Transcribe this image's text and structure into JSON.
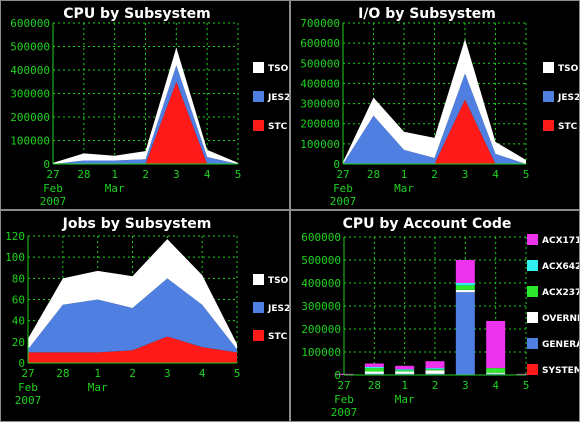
{
  "chart_data": [
    {
      "type": "area",
      "title": "CPU by Subsystem",
      "x": [
        "27",
        "28",
        "1",
        "2",
        "3",
        "4",
        "5"
      ],
      "x_sublabels": [
        "Feb 2007",
        "",
        "Mar",
        "",
        "",
        "",
        ""
      ],
      "ylim": [
        0,
        600000
      ],
      "yticks": [
        "0",
        "100000",
        "200000",
        "300000",
        "400000",
        "500000",
        "600000"
      ],
      "grid": true,
      "stacked": true,
      "legend_position": "right",
      "series": [
        {
          "name": "STC",
          "color": "#ff1a1a",
          "values": [
            0,
            0,
            0,
            0,
            350000,
            0,
            0
          ]
        },
        {
          "name": "JES2",
          "color": "#4f7fe0",
          "values": [
            0,
            15000,
            15000,
            20000,
            70000,
            30000,
            0
          ]
        },
        {
          "name": "TSO",
          "color": "#ffffff",
          "values": [
            5000,
            30000,
            20000,
            35000,
            75000,
            30000,
            5000
          ]
        }
      ]
    },
    {
      "type": "area",
      "title": "I/O by Subsystem",
      "x": [
        "27",
        "28",
        "1",
        "2",
        "3",
        "4",
        "5"
      ],
      "x_sublabels": [
        "Feb 2007",
        "",
        "Mar",
        "",
        "",
        "",
        ""
      ],
      "ylim": [
        0,
        700000
      ],
      "yticks": [
        "0",
        "100000",
        "200000",
        "300000",
        "400000",
        "500000",
        "600000",
        "700000"
      ],
      "grid": true,
      "stacked": true,
      "legend_position": "right",
      "series": [
        {
          "name": "STC",
          "color": "#ff1a1a",
          "values": [
            0,
            0,
            0,
            0,
            320000,
            0,
            0
          ]
        },
        {
          "name": "JES2",
          "color": "#4f7fe0",
          "values": [
            0,
            240000,
            70000,
            30000,
            130000,
            50000,
            0
          ]
        },
        {
          "name": "TSO",
          "color": "#ffffff",
          "values": [
            10000,
            90000,
            90000,
            100000,
            170000,
            60000,
            20000
          ]
        }
      ]
    },
    {
      "type": "area",
      "title": "Jobs by Subsystem",
      "x": [
        "27",
        "28",
        "1",
        "2",
        "3",
        "4",
        "5"
      ],
      "x_sublabels": [
        "Feb 2007",
        "",
        "Mar",
        "",
        "",
        "",
        ""
      ],
      "ylim": [
        0,
        120
      ],
      "yticks": [
        "0",
        "20",
        "40",
        "60",
        "80",
        "100",
        "120"
      ],
      "grid": true,
      "stacked": true,
      "legend_position": "right",
      "series": [
        {
          "name": "STC",
          "color": "#ff1a1a",
          "values": [
            10,
            10,
            10,
            12,
            25,
            15,
            10
          ]
        },
        {
          "name": "JES2",
          "color": "#4f7fe0",
          "values": [
            3,
            45,
            50,
            40,
            55,
            40,
            3
          ]
        },
        {
          "name": "TSO",
          "color": "#ffffff",
          "values": [
            10,
            25,
            27,
            30,
            37,
            28,
            5
          ]
        }
      ]
    },
    {
      "type": "bar",
      "title": "CPU by Account Code",
      "x": [
        "27",
        "28",
        "1",
        "2",
        "3",
        "4",
        "5"
      ],
      "x_sublabels": [
        "Feb 2007",
        "",
        "Mar",
        "",
        "",
        "",
        ""
      ],
      "ylim": [
        0,
        600000
      ],
      "yticks": [
        "0",
        "100000",
        "200000",
        "300000",
        "400000",
        "500000",
        "600000"
      ],
      "grid": true,
      "stacked": true,
      "legend_position": "right",
      "series": [
        {
          "name": "SYSTEM",
          "color": "#ff1a1a",
          "values": [
            0,
            0,
            0,
            0,
            0,
            0,
            0
          ]
        },
        {
          "name": "GENERAL",
          "color": "#4f7fe0",
          "values": [
            0,
            5000,
            5000,
            5000,
            360000,
            5000,
            0
          ]
        },
        {
          "name": "OVERNITE",
          "color": "#ffffff",
          "values": [
            0,
            10000,
            10000,
            15000,
            10000,
            5000,
            0
          ]
        },
        {
          "name": "ACX237",
          "color": "#2ee82e",
          "values": [
            0,
            15000,
            5000,
            5000,
            20000,
            20000,
            0
          ]
        },
        {
          "name": "ACX642",
          "color": "#33f0f0",
          "values": [
            0,
            5000,
            5000,
            5000,
            10000,
            0,
            0
          ]
        },
        {
          "name": "ACX171",
          "color": "#ee33ee",
          "values": [
            5000,
            15000,
            15000,
            30000,
            100000,
            205000,
            5000
          ]
        }
      ]
    }
  ]
}
